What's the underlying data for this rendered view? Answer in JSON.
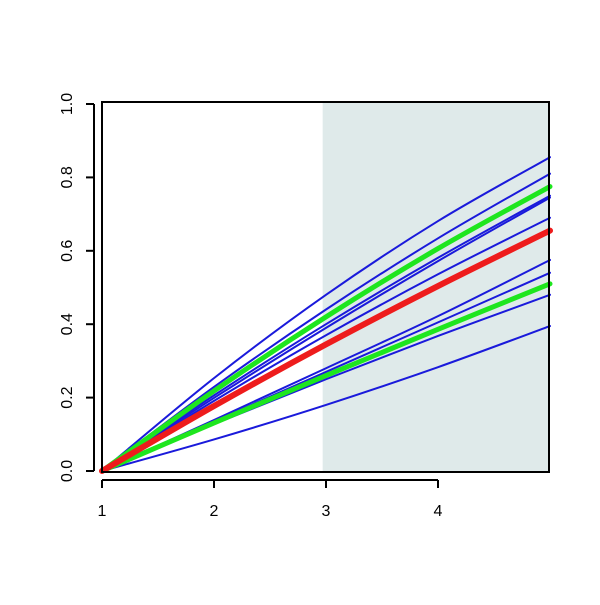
{
  "chart_data": {
    "type": "line",
    "x": [
      1,
      2,
      3,
      4,
      5
    ],
    "xlim": [
      1,
      5
    ],
    "ylim": [
      0,
      1
    ],
    "xticks": [
      1,
      2,
      3,
      4
    ],
    "yticks": [
      {
        "value": 0,
        "label": "0.0"
      },
      {
        "value": 0.2,
        "label": "0.2"
      },
      {
        "value": 0.4,
        "label": "0.4"
      },
      {
        "value": 0.6,
        "label": "0.6"
      },
      {
        "value": 0.8,
        "label": "0.8"
      },
      {
        "value": 1,
        "label": "1.0"
      }
    ],
    "shade": {
      "from": 2.97,
      "to": 5,
      "color": "#dfeaea"
    },
    "series": [
      {
        "color": "#1a1adb",
        "width": 2,
        "values": [
          0,
          0.253,
          0.48,
          0.681,
          0.855
        ]
      },
      {
        "color": "#1a1adb",
        "width": 2,
        "values": [
          0,
          0.229,
          0.44,
          0.634,
          0.81
        ]
      },
      {
        "color": "#1a1adb",
        "width": 2,
        "values": [
          0,
          0.206,
          0.4,
          0.581,
          0.75
        ]
      },
      {
        "color": "#1a1adb",
        "width": 2,
        "values": [
          0,
          0.199,
          0.39,
          0.572,
          0.745
        ]
      },
      {
        "color": "#1a1adb",
        "width": 2,
        "values": [
          0,
          0.191,
          0.37,
          0.536,
          0.69
        ]
      },
      {
        "color": "#1a1adb",
        "width": 2,
        "values": [
          0,
          0.139,
          0.28,
          0.422,
          0.575
        ]
      },
      {
        "color": "#1a1adb",
        "width": 2,
        "values": [
          0,
          0.135,
          0.27,
          0.405,
          0.54
        ]
      },
      {
        "color": "#1a1adb",
        "width": 2,
        "values": [
          0,
          0.128,
          0.25,
          0.368,
          0.48
        ]
      },
      {
        "color": "#1a1adb",
        "width": 2,
        "values": [
          0,
          0.086,
          0.18,
          0.283,
          0.395
        ]
      },
      {
        "color": "#1ee61e",
        "width": 5,
        "values": [
          0,
          0.218,
          0.42,
          0.606,
          0.775
        ]
      },
      {
        "color": "#1ee61e",
        "width": 5,
        "values": [
          0,
          0.131,
          0.26,
          0.386,
          0.51
        ]
      },
      {
        "color": "#ee1c1c",
        "width": 6,
        "values": [
          0,
          0.177,
          0.345,
          0.504,
          0.655
        ]
      }
    ]
  }
}
